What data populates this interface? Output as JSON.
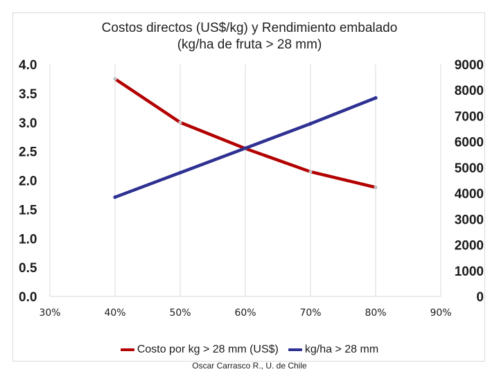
{
  "chart_data": {
    "type": "line",
    "title": "Costos directos (US$/kg) y Rendimiento embalado",
    "subtitle": "(kg/ha de fruta > 28 mm)",
    "x_ticks": [
      "30%",
      "40%",
      "50%",
      "60%",
      "70%",
      "80%",
      "90%"
    ],
    "xlim": [
      30,
      90
    ],
    "y_left_ticks": [
      "0.0",
      "0.5",
      "1.0",
      "1.5",
      "2.0",
      "2.5",
      "3.0",
      "3.5",
      "4.0"
    ],
    "ylim_left": [
      0,
      4
    ],
    "y_right_ticks": [
      "0",
      "1000",
      "2000",
      "3000",
      "4000",
      "5000",
      "6000",
      "7000",
      "8000",
      "9000"
    ],
    "ylim_right": [
      0,
      9000
    ],
    "grid": "vertical",
    "legend_position": "bottom",
    "series": [
      {
        "name": "Costo por kg > 28 mm (US$)",
        "axis": "left",
        "color": "#b30000",
        "marker_color": "#c0c0c0",
        "x": [
          40,
          50,
          60,
          70,
          80
        ],
        "y": [
          3.75,
          3.0,
          2.55,
          2.15,
          1.88
        ]
      },
      {
        "name": "kg/ha > 28 mm",
        "axis": "right",
        "color": "#2e3192",
        "marker_color": "#2e3192",
        "x": [
          40,
          50,
          60,
          70,
          80
        ],
        "y": [
          3850,
          4800,
          5750,
          6700,
          7700
        ]
      }
    ]
  },
  "footer": {
    "credit": "Oscar Carrasco R., U. de Chile"
  }
}
